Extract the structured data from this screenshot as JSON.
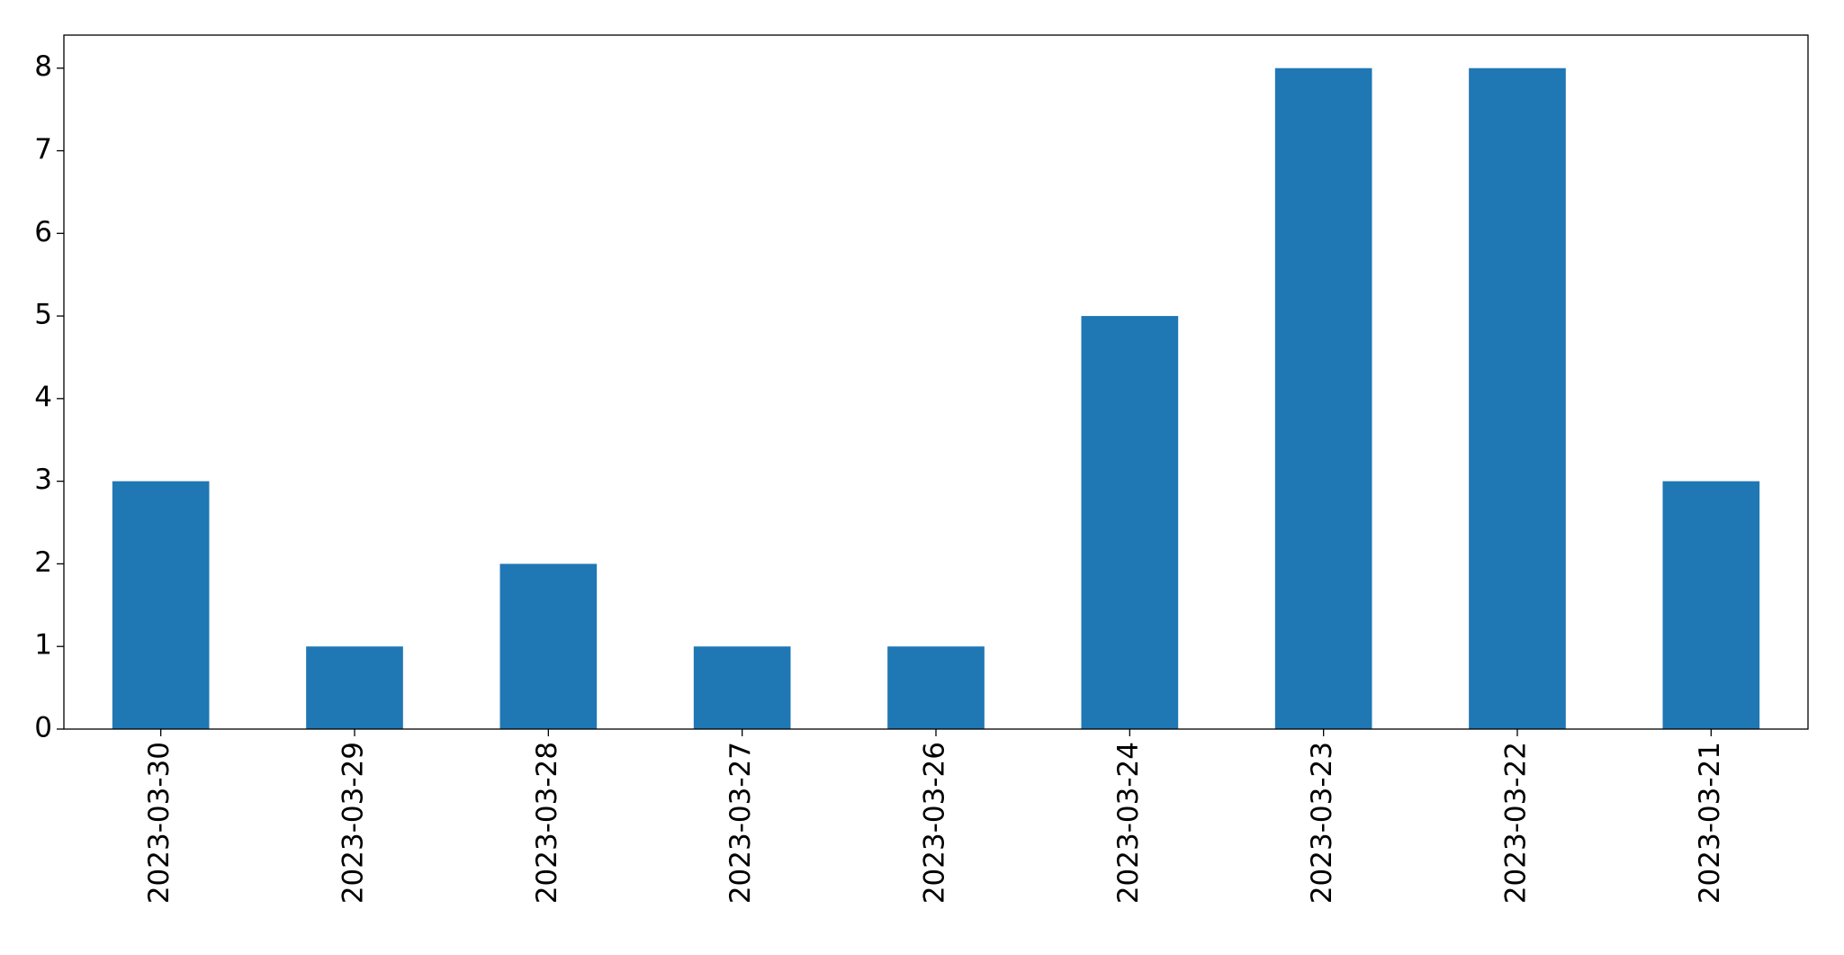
{
  "chart_data": {
    "type": "bar",
    "categories": [
      "2023-03-30",
      "2023-03-29",
      "2023-03-28",
      "2023-03-27",
      "2023-03-26",
      "2023-03-24",
      "2023-03-23",
      "2023-03-22",
      "2023-03-21"
    ],
    "values": [
      3,
      1,
      2,
      1,
      1,
      5,
      8,
      8,
      3
    ],
    "color": "#1f77b4",
    "ylim": [
      0,
      8.4
    ],
    "yticks": [
      0,
      1,
      2,
      3,
      4,
      5,
      6,
      7,
      8
    ],
    "grid": false
  }
}
